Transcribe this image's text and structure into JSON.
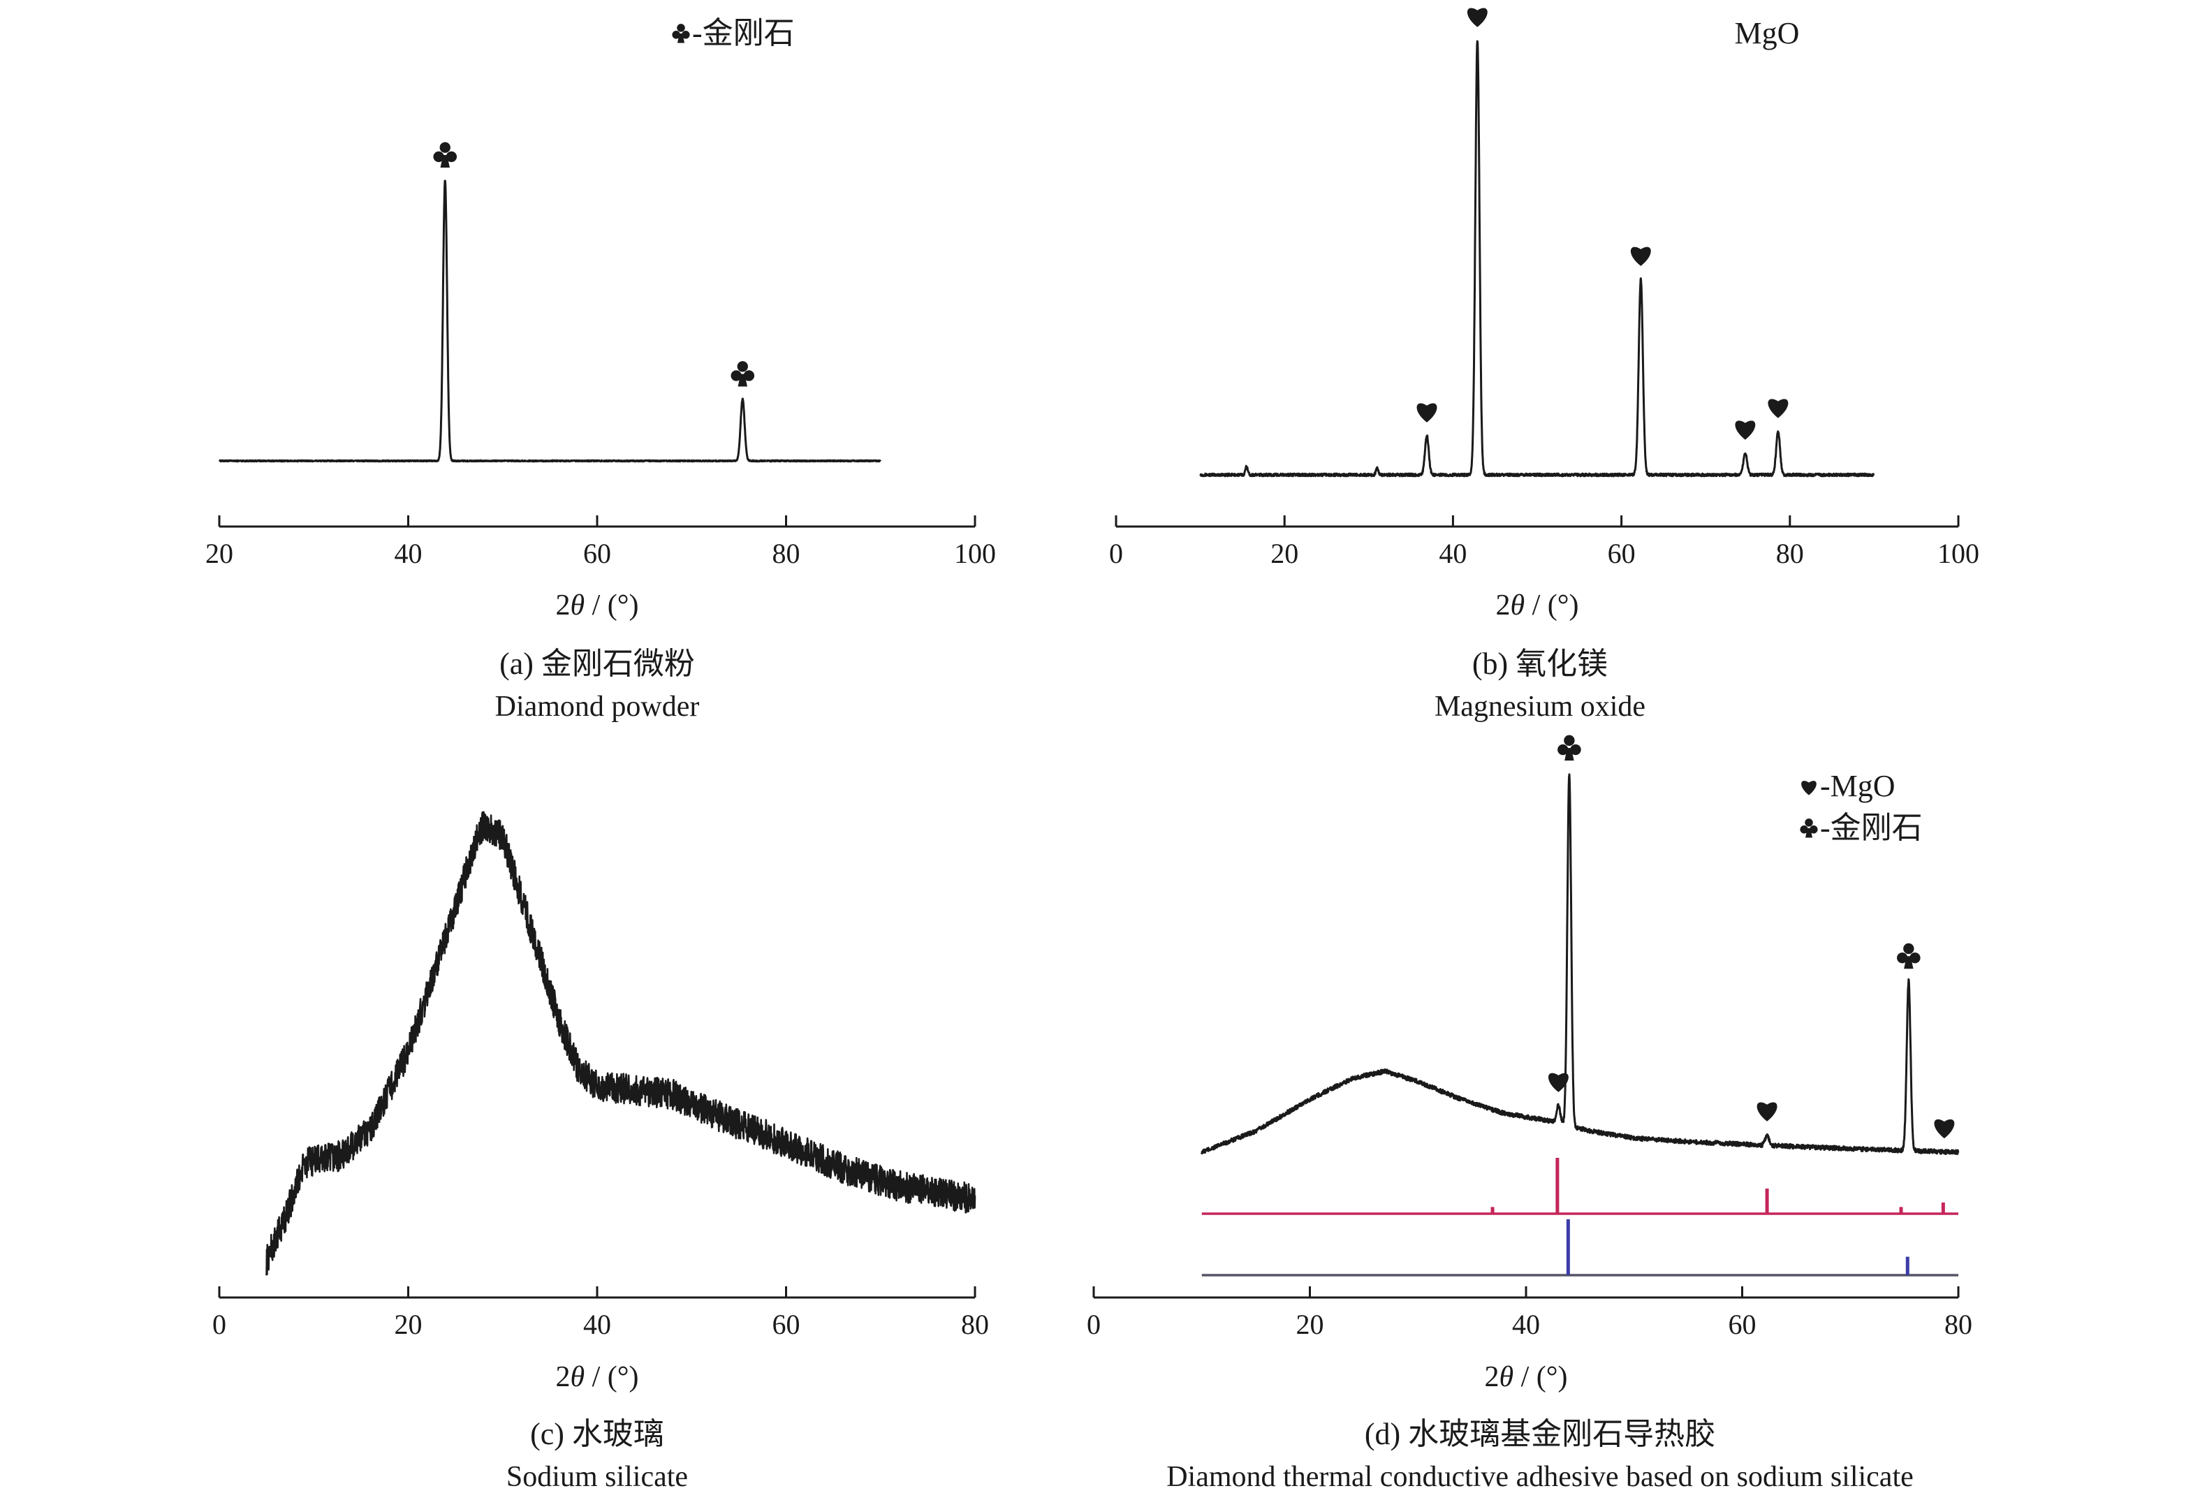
{
  "chart_data": [
    {
      "id": "a",
      "type": "line",
      "xlabel": "2θ / (°)",
      "caption_cn": "(a) 金刚石微粉",
      "caption_en": "Diamond powder",
      "xlim": [
        20,
        100
      ],
      "xticks": [
        20,
        40,
        60,
        80,
        100
      ],
      "legend": [
        {
          "marker": "club",
          "text": "-金刚石"
        }
      ],
      "legend_placement": "top-center",
      "series": [
        {
          "color": "#1a1a1a",
          "baseline": 0.0,
          "x_range": [
            20,
            90
          ],
          "noise": 0.002,
          "hump": null,
          "peaks": [
            {
              "x": 43.9,
              "h": 1.0,
              "w": 0.3,
              "marker": "club"
            },
            {
              "x": 75.4,
              "h": 0.22,
              "w": 0.3,
              "marker": "club"
            }
          ]
        }
      ],
      "y_headroom": 1.28
    },
    {
      "id": "b",
      "type": "line",
      "xlabel": "2θ / (°)",
      "caption_cn": "(b) 氧化镁",
      "caption_en": "Magnesium oxide",
      "xlim": [
        0,
        100
      ],
      "xticks": [
        0,
        20,
        40,
        60,
        80,
        100
      ],
      "legend": [
        {
          "marker": "",
          "text": "MgO"
        }
      ],
      "legend_placement": "top-right",
      "series": [
        {
          "color": "#1a1a1a",
          "baseline": 0.0,
          "x_range": [
            10,
            90
          ],
          "noise": 0.003,
          "hump": null,
          "peaks": [
            {
              "x": 15.5,
              "h": 0.02,
              "w": 0.2,
              "marker": ""
            },
            {
              "x": 31.0,
              "h": 0.015,
              "w": 0.2,
              "marker": ""
            },
            {
              "x": 36.9,
              "h": 0.09,
              "w": 0.32,
              "marker": "heart"
            },
            {
              "x": 42.9,
              "h": 1.0,
              "w": 0.35,
              "marker": "heart"
            },
            {
              "x": 62.3,
              "h": 0.45,
              "w": 0.35,
              "marker": "heart"
            },
            {
              "x": 74.7,
              "h": 0.05,
              "w": 0.32,
              "marker": "heart"
            },
            {
              "x": 78.6,
              "h": 0.1,
              "w": 0.32,
              "marker": "heart"
            }
          ]
        }
      ],
      "y_headroom": 1.05
    },
    {
      "id": "c",
      "type": "line",
      "xlabel": "2θ / (°)",
      "caption_cn": "(c) 水玻璃",
      "caption_en": "Sodium silicate",
      "xlim": [
        0,
        80
      ],
      "xticks": [
        0,
        20,
        40,
        60,
        80
      ],
      "legend": [],
      "legend_placement": "",
      "series": [
        {
          "color": "#1a1a1a",
          "x_range": [
            5,
            80
          ],
          "noise": 0.035,
          "profile": [
            [
              5,
              0.0
            ],
            [
              7,
              0.1
            ],
            [
              9,
              0.22
            ],
            [
              10,
              0.23
            ],
            [
              13,
              0.24
            ],
            [
              16,
              0.3
            ],
            [
              20,
              0.48
            ],
            [
              24,
              0.74
            ],
            [
              27,
              0.95
            ],
            [
              28,
              1.0
            ],
            [
              30,
              0.97
            ],
            [
              33,
              0.76
            ],
            [
              36,
              0.55
            ],
            [
              38,
              0.44
            ],
            [
              40,
              0.4
            ],
            [
              44,
              0.39
            ],
            [
              48,
              0.38
            ],
            [
              54,
              0.32
            ],
            [
              60,
              0.27
            ],
            [
              66,
              0.21
            ],
            [
              72,
              0.17
            ],
            [
              80,
              0.14
            ]
          ]
        }
      ],
      "y_headroom": 1.0
    },
    {
      "id": "d",
      "type": "line",
      "xlabel": "2θ / (°)",
      "caption_cn": "(d) 水玻璃基金刚石导热胶",
      "caption_en": "Diamond thermal conductive adhesive based on sodium silicate",
      "xlim": [
        0,
        80
      ],
      "xticks": [
        0,
        20,
        40,
        60,
        80
      ],
      "legend": [
        {
          "marker": "heart",
          "text": "-MgO"
        },
        {
          "marker": "club",
          "text": "-金刚石"
        }
      ],
      "legend_placement": "top-right",
      "series": [
        {
          "color": "#1a1a1a",
          "x_range": [
            10,
            80
          ],
          "noise": 0.006,
          "profile": [
            [
              10,
              0.0
            ],
            [
              15,
              0.06
            ],
            [
              20,
              0.15
            ],
            [
              24,
              0.21
            ],
            [
              27,
              0.23
            ],
            [
              30,
              0.2
            ],
            [
              34,
              0.15
            ],
            [
              38,
              0.11
            ],
            [
              42,
              0.09
            ],
            [
              46,
              0.06
            ],
            [
              50,
              0.04
            ],
            [
              55,
              0.03
            ],
            [
              62,
              0.02
            ],
            [
              70,
              0.01
            ],
            [
              80,
              0.0
            ]
          ],
          "peaks": [
            {
              "x": 43.0,
              "h": 0.05,
              "w": 0.25,
              "marker": "heart"
            },
            {
              "x": 44.0,
              "h": 1.0,
              "w": 0.25,
              "marker": "club"
            },
            {
              "x": 62.3,
              "h": 0.03,
              "w": 0.25,
              "marker": "heart"
            },
            {
              "x": 75.4,
              "h": 0.48,
              "w": 0.25,
              "marker": "club"
            },
            {
              "x": 78.7,
              "h": 0.0,
              "w": 0.25,
              "marker": "heart"
            }
          ]
        }
      ],
      "reference_lines": [
        {
          "name": "MgO",
          "color": "#c5265a",
          "sticks": [
            [
              36.9,
              0.12
            ],
            [
              42.9,
              1.0
            ],
            [
              62.3,
              0.45
            ],
            [
              74.7,
              0.12
            ],
            [
              78.6,
              0.2
            ]
          ]
        },
        {
          "name": "金刚石",
          "color": "#3c3ca8",
          "sticks": [
            [
              43.9,
              1.0
            ],
            [
              75.3,
              0.33
            ]
          ]
        }
      ],
      "y_headroom": 1.0
    }
  ]
}
